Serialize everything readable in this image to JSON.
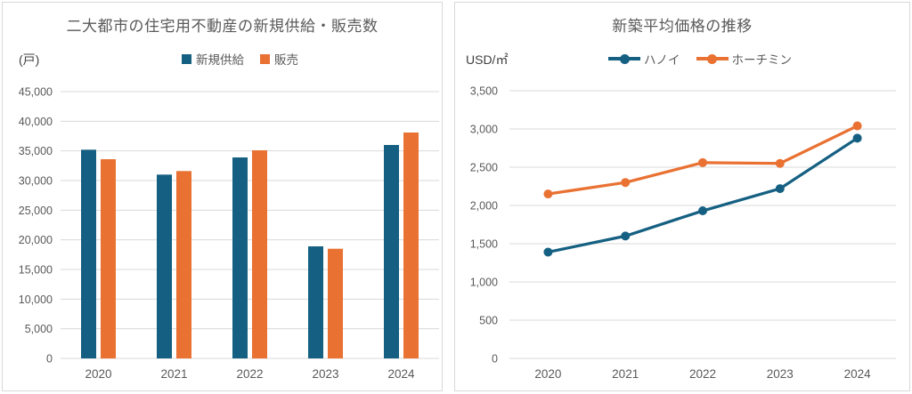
{
  "chart_data": [
    {
      "type": "bar",
      "title": "二大都市の住宅用不動産の新規供給・販売数",
      "unit": "(戸)",
      "categories": [
        "2020",
        "2021",
        "2022",
        "2023",
        "2024"
      ],
      "series": [
        {
          "name": "新規供給",
          "color": "#156082",
          "values": [
            35200,
            31000,
            33900,
            18900,
            36000
          ]
        },
        {
          "name": "販売",
          "color": "#E97132",
          "values": [
            33600,
            31600,
            35100,
            18500,
            38100
          ]
        }
      ],
      "xlabel": "",
      "ylabel": "(戸)",
      "ylim": [
        0,
        45000
      ],
      "ytick_step": 5000,
      "grid": true,
      "legend_position": "top"
    },
    {
      "type": "line",
      "title": "新築平均価格の推移",
      "unit": "USD/㎡",
      "categories": [
        "2020",
        "2021",
        "2022",
        "2023",
        "2024"
      ],
      "series": [
        {
          "name": "ハノイ",
          "color": "#156082",
          "values": [
            1390,
            1600,
            1930,
            2220,
            2880
          ]
        },
        {
          "name": "ホーチミン",
          "color": "#E97132",
          "values": [
            2150,
            2300,
            2560,
            2550,
            3040
          ]
        }
      ],
      "xlabel": "",
      "ylabel": "USD/㎡",
      "ylim": [
        0,
        3500
      ],
      "ytick_step": 500,
      "grid": true,
      "legend_position": "top"
    }
  ],
  "colors": {
    "accent_blue": "#156082",
    "accent_orange": "#E97132",
    "gridline": "#D9D9D9",
    "tick_text": "#595959",
    "title_text": "#595959",
    "panel_border": "#D9D9D9"
  }
}
